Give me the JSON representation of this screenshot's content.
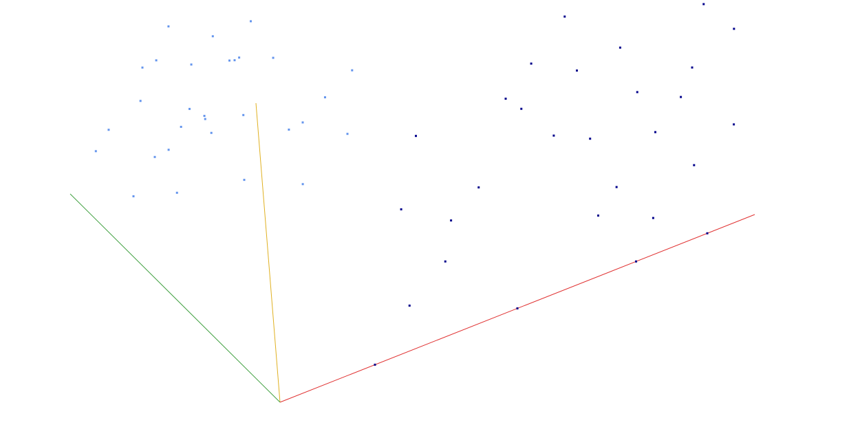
{
  "chart_data": {
    "type": "scatter3d",
    "xlim": [
      0,
      10
    ],
    "ylim": [
      0,
      10
    ],
    "zlim": [
      0,
      10
    ],
    "series": [
      {
        "color": "#6495ed",
        "x": [
          0.5,
          1,
          1.5,
          0.8,
          2,
          2.5,
          1.2,
          0.3,
          1.8,
          2.2,
          0.6,
          1,
          2.8,
          1.5,
          0.4,
          2,
          1.3,
          0.9,
          2.6,
          1.7,
          0.2,
          0.5,
          1,
          2,
          3,
          2.4,
          1.1,
          0.7,
          1.9,
          3.2
        ],
        "y": [
          6,
          5,
          7,
          4,
          6,
          5,
          8,
          3,
          3,
          7,
          5,
          2,
          6,
          4,
          7,
          8,
          6,
          3,
          4,
          5,
          2,
          1,
          1.5,
          2,
          5,
          3,
          7,
          6,
          6.5,
          7
        ],
        "z": [
          7,
          6,
          5,
          8,
          6,
          4,
          5,
          8.5,
          7,
          4.5,
          5.5,
          8,
          3.5,
          6.5,
          6,
          5,
          4,
          7,
          5,
          7.5,
          9,
          8,
          7,
          6,
          3,
          4,
          7,
          4.5,
          5.5,
          3
        ]
      },
      {
        "color": "#00008b",
        "x": [
          8,
          7,
          9,
          6,
          9.5,
          8.5,
          7.5,
          6.5,
          10,
          9,
          8,
          7,
          5,
          4.5,
          5.5,
          6,
          8.5,
          9,
          7.5,
          5,
          2,
          3,
          4,
          3.5,
          9.8,
          7,
          8,
          6.8,
          9.2,
          4
        ],
        "y": [
          5,
          6,
          4,
          5,
          7,
          3,
          2,
          4,
          6,
          2,
          1,
          1.5,
          3,
          2,
          6,
          7,
          8,
          0,
          0,
          0,
          0,
          1,
          1.5,
          3,
          3,
          4,
          6,
          8,
          5,
          5
        ],
        "z": [
          0.5,
          1,
          0.8,
          1.5,
          0.5,
          1,
          0.7,
          1.2,
          0.3,
          0.4,
          0.2,
          0.5,
          1.5,
          1.8,
          1,
          0.8,
          0.4,
          0,
          0,
          0,
          0,
          0.5,
          1,
          1.8,
          0.2,
          0.6,
          1.2,
          0.9,
          0.6,
          2
        ]
      }
    ]
  }
}
